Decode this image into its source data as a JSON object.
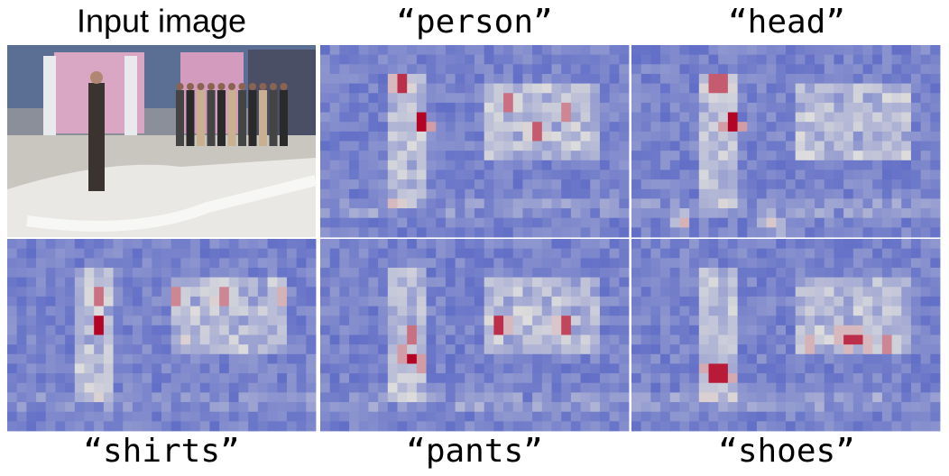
{
  "panels": [
    {
      "label": "Input image"
    },
    {
      "label": "“person”"
    },
    {
      "label": "“head”"
    },
    {
      "label": "“shirts”"
    },
    {
      "label": "“pants”"
    },
    {
      "label": "“shoes”"
    }
  ]
}
